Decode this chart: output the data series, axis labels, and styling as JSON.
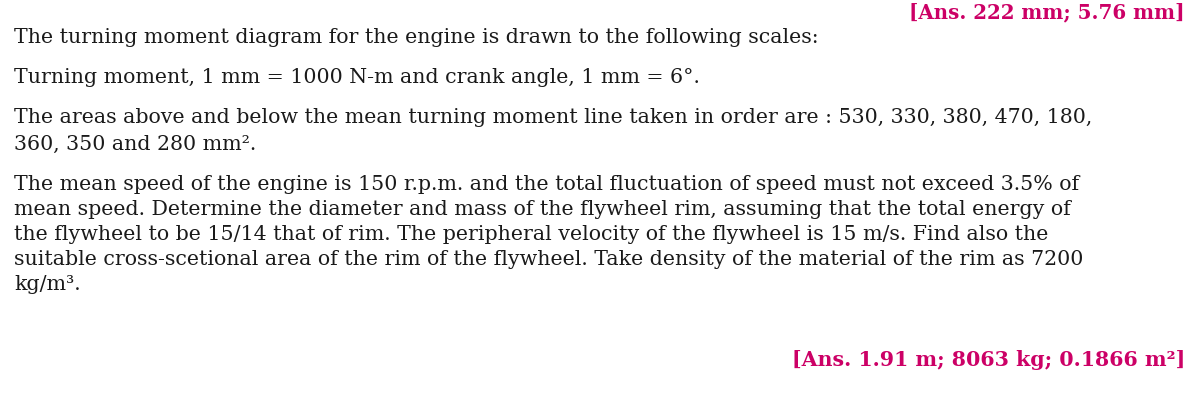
{
  "bg_color": "#ffffff",
  "text_color": "#1a1a1a",
  "ans_color": "#cc0066",
  "top_ans_text": "[Ans. 222 mm; 5.76 mm]",
  "line1": "The turning moment diagram for the engine is drawn to the following scales:",
  "line2": "Turning moment, 1 mm = 1000 N-m and crank angle, 1 mm = 6°.",
  "line3a": "The areas above and below the mean turning moment line taken in order are : 530, 330, 380, 470, 180,",
  "line3b": "360, 350 and 280 mm².",
  "line4a": "The mean speed of the engine is 150 r.p.m. and the total fluctuation of speed must not exceed 3.5% of",
  "line4b": "mean speed. Determine the diameter and mass of the flywheel rim, assuming that the total energy of",
  "line4c": "the flywheel to be 15/14 that of rim. The peripheral velocity of the flywheel is 15 m/s. Find also the",
  "line4d": "suitable cross-scetional area of the rim of the flywheel. Take density of the material of the rim as 7200",
  "line4e": "kg/m³.",
  "ans_line": "[Ans. 1.91 m; 8063 kg; 0.1866 m²]",
  "font_size_main": 14.8,
  "figsize": [
    12.0,
    4.03
  ],
  "dpi": 100
}
